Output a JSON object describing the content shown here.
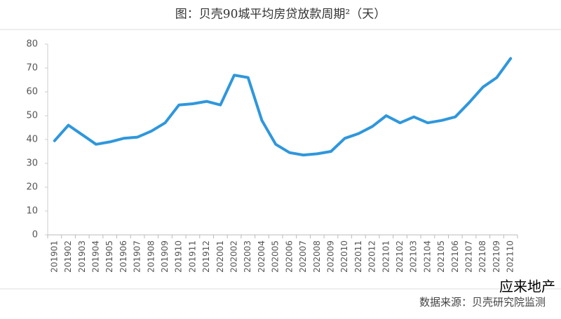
{
  "chart_data": {
    "type": "line",
    "title": "图：贝壳90城平均房贷放款周期²（天）",
    "source": "数据来源：贝壳研究院监测",
    "watermark": "应来地产",
    "categories": [
      "201901",
      "201902",
      "201903",
      "201904",
      "201905",
      "201906",
      "201907",
      "201908",
      "201909",
      "201910",
      "201911",
      "201912",
      "202001",
      "202002",
      "202003",
      "202004",
      "202005",
      "202006",
      "202007",
      "202008",
      "202009",
      "202010",
      "202011",
      "202012",
      "202101",
      "202102",
      "202103",
      "202104",
      "202105",
      "202106",
      "202107",
      "202108",
      "202109",
      "202110"
    ],
    "values": [
      39.5,
      46,
      42,
      38,
      39,
      40.5,
      41,
      43.5,
      47,
      54.5,
      55,
      56,
      54.5,
      67,
      66,
      48,
      38,
      34.5,
      33.5,
      34,
      35,
      40.5,
      42.5,
      45.5,
      50,
      47,
      49.5,
      47,
      48,
      49.5,
      55.5,
      62,
      66,
      74
    ],
    "color": "#2f97dc",
    "ylim": [
      0,
      80
    ],
    "yticks": [
      0,
      10,
      20,
      30,
      40,
      50,
      60,
      70,
      80
    ],
    "grid": false
  }
}
